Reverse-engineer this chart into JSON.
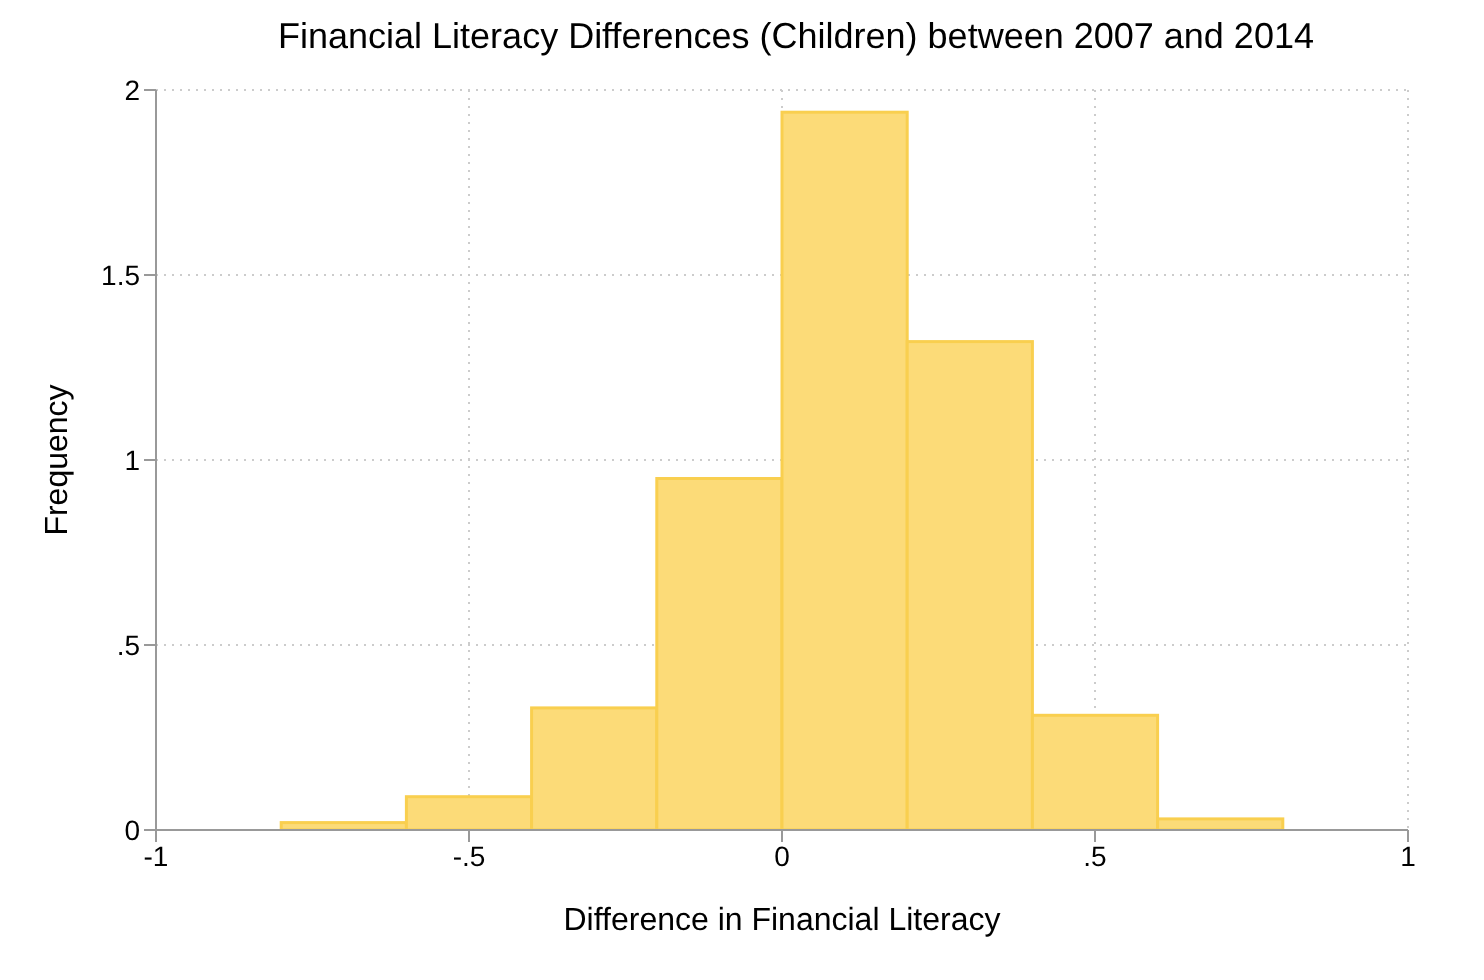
{
  "chart_data": {
    "type": "histogram",
    "title": "Financial Literacy Differences (Children) between 2007 and 2014",
    "xlabel": "Difference in Financial Literacy",
    "ylabel": "Frequency",
    "bins": [
      -0.8,
      -0.6,
      -0.4,
      -0.2,
      0,
      0.2,
      0.4,
      0.6,
      0.8
    ],
    "values": [
      0.02,
      0.09,
      0.33,
      0.95,
      1.94,
      1.32,
      0.31,
      0.03
    ],
    "color": "#fcdb78",
    "xlim": [
      -1,
      1
    ],
    "xticks": [
      -1,
      {
        "value": -0.5,
        "label": "-.5"
      },
      0,
      {
        "value": 0.5,
        "label": ".5"
      },
      1
    ],
    "ylim": [
      0,
      2
    ],
    "yticks": [
      0,
      {
        "value": 0.5,
        "label": ".5"
      },
      1,
      {
        "value": 1.5,
        "label": "1.5"
      },
      2
    ],
    "grid": true
  }
}
